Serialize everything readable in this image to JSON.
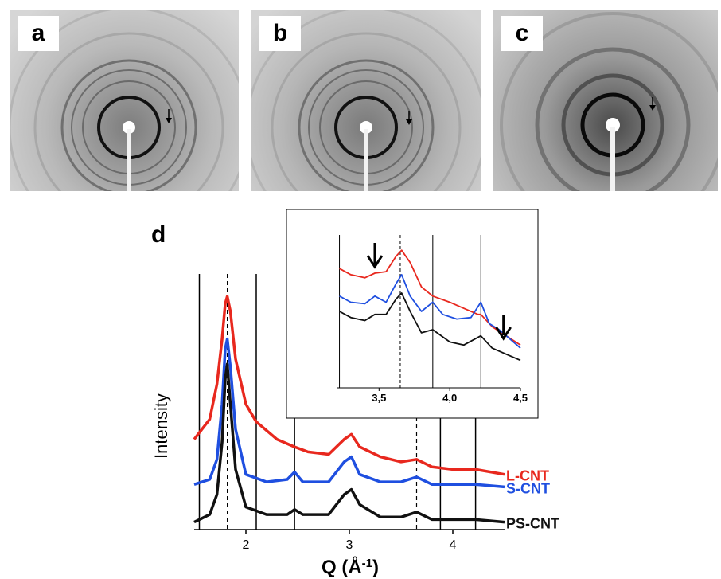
{
  "panels": [
    {
      "label": "a"
    },
    {
      "label": "b"
    },
    {
      "label": "c"
    }
  ],
  "main_label": "d",
  "chart_data": [
    {
      "type": "line",
      "xlabel": "Q (Å",
      "xlabel_sup": "-1",
      "xlabel_close": ")",
      "ylabel": "Intensity",
      "xlim": [
        1.5,
        4.5
      ],
      "ticks": [
        "2",
        "3",
        "4"
      ],
      "tick_values": [
        2,
        3,
        4
      ],
      "vlines_solid": [
        1.55,
        2.1,
        2.47,
        3.88,
        4.22
      ],
      "vlines_dashed": [
        1.82,
        3.65
      ],
      "series": [
        {
          "name": "L-CNT",
          "color": "#e8281e",
          "x": [
            1.5,
            1.65,
            1.72,
            1.77,
            1.8,
            1.82,
            1.85,
            1.9,
            2.0,
            2.1,
            2.3,
            2.47,
            2.6,
            2.8,
            2.95,
            3.02,
            3.1,
            3.3,
            3.5,
            3.65,
            3.8,
            4.0,
            4.22,
            4.5
          ],
          "y": [
            0.36,
            0.44,
            0.58,
            0.76,
            0.9,
            0.93,
            0.87,
            0.68,
            0.5,
            0.43,
            0.36,
            0.33,
            0.31,
            0.3,
            0.36,
            0.38,
            0.33,
            0.29,
            0.27,
            0.28,
            0.25,
            0.24,
            0.24,
            0.22
          ]
        },
        {
          "name": "S-CNT",
          "color": "#1f4fe0",
          "x": [
            1.5,
            1.65,
            1.72,
            1.77,
            1.8,
            1.82,
            1.85,
            1.9,
            2.0,
            2.2,
            2.4,
            2.47,
            2.55,
            2.8,
            2.95,
            3.02,
            3.1,
            3.3,
            3.5,
            3.65,
            3.8,
            4.0,
            4.22,
            4.5
          ],
          "y": [
            0.18,
            0.2,
            0.28,
            0.5,
            0.72,
            0.76,
            0.65,
            0.4,
            0.22,
            0.19,
            0.2,
            0.23,
            0.19,
            0.19,
            0.27,
            0.29,
            0.22,
            0.19,
            0.19,
            0.21,
            0.18,
            0.18,
            0.18,
            0.17
          ]
        },
        {
          "name": "PS-CNT",
          "color": "#111111",
          "x": [
            1.5,
            1.65,
            1.72,
            1.77,
            1.8,
            1.82,
            1.85,
            1.9,
            2.0,
            2.2,
            2.4,
            2.47,
            2.55,
            2.8,
            2.95,
            3.02,
            3.1,
            3.3,
            3.5,
            3.65,
            3.8,
            4.0,
            4.22,
            4.5
          ],
          "y": [
            0.03,
            0.06,
            0.14,
            0.35,
            0.6,
            0.66,
            0.5,
            0.24,
            0.09,
            0.06,
            0.06,
            0.08,
            0.06,
            0.06,
            0.14,
            0.16,
            0.1,
            0.05,
            0.05,
            0.07,
            0.04,
            0.04,
            0.04,
            0.03
          ]
        }
      ]
    },
    {
      "type": "line",
      "role": "inset",
      "xlim": [
        3.2,
        4.5
      ],
      "ticks": [
        "3,5",
        "4,0",
        "4,5"
      ],
      "tick_values": [
        3.5,
        4.0,
        4.5
      ],
      "vlines_solid": [
        3.22,
        3.88,
        4.22
      ],
      "vlines_dashed": [
        3.65
      ],
      "arrows_at": [
        3.47,
        4.38
      ],
      "series": [
        {
          "name": "L-CNT",
          "color": "#e8281e",
          "x": [
            3.22,
            3.3,
            3.4,
            3.47,
            3.55,
            3.62,
            3.66,
            3.72,
            3.8,
            3.88,
            4.0,
            4.1,
            4.2,
            4.22,
            4.3,
            4.4,
            4.5
          ],
          "y": [
            0.78,
            0.74,
            0.72,
            0.75,
            0.76,
            0.86,
            0.9,
            0.82,
            0.66,
            0.6,
            0.56,
            0.52,
            0.48,
            0.48,
            0.4,
            0.34,
            0.28
          ]
        },
        {
          "name": "S-CNT",
          "color": "#1f4fe0",
          "x": [
            3.22,
            3.3,
            3.4,
            3.47,
            3.55,
            3.62,
            3.66,
            3.72,
            3.8,
            3.88,
            3.95,
            4.05,
            4.15,
            4.22,
            4.28,
            4.35,
            4.4,
            4.5
          ],
          "y": [
            0.6,
            0.56,
            0.55,
            0.6,
            0.56,
            0.68,
            0.74,
            0.6,
            0.5,
            0.56,
            0.48,
            0.45,
            0.46,
            0.56,
            0.42,
            0.38,
            0.34,
            0.26
          ]
        },
        {
          "name": "PS-CNT",
          "color": "#111111",
          "x": [
            3.22,
            3.3,
            3.4,
            3.47,
            3.55,
            3.62,
            3.66,
            3.72,
            3.8,
            3.88,
            4.0,
            4.1,
            4.22,
            4.3,
            4.4,
            4.5
          ],
          "y": [
            0.5,
            0.46,
            0.44,
            0.48,
            0.48,
            0.58,
            0.62,
            0.5,
            0.36,
            0.38,
            0.3,
            0.28,
            0.34,
            0.26,
            0.22,
            0.18
          ]
        }
      ]
    }
  ]
}
